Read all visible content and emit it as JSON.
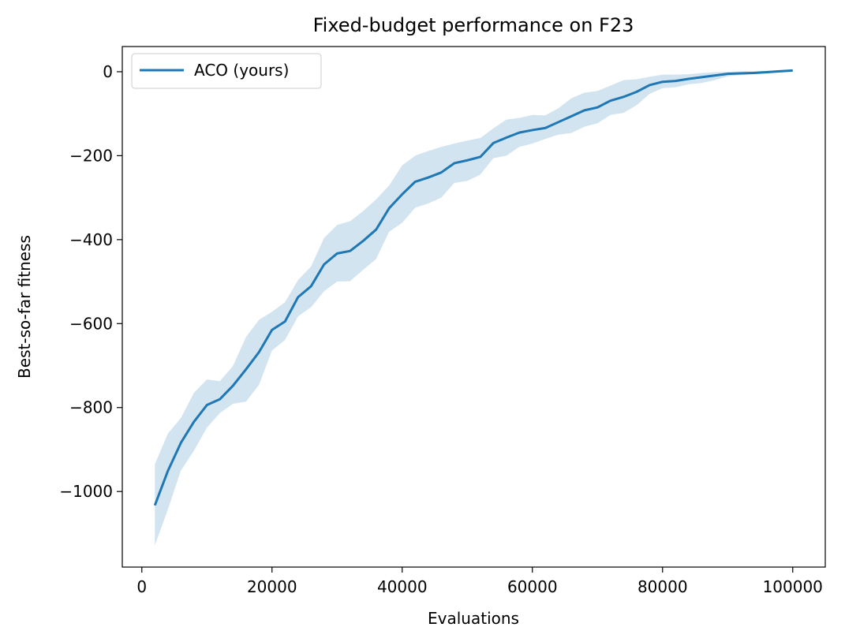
{
  "chart_data": {
    "type": "line",
    "title": "Fixed-budget performance on F23",
    "xlabel": "Evaluations",
    "ylabel": "Best-so-far fitness",
    "xlim": [
      -3000,
      105000
    ],
    "ylim": [
      -1180,
      60
    ],
    "x_ticks": [
      {
        "value": 0,
        "label": "0"
      },
      {
        "value": 20000,
        "label": "20000"
      },
      {
        "value": 40000,
        "label": "40000"
      },
      {
        "value": 60000,
        "label": "60000"
      },
      {
        "value": 80000,
        "label": "80000"
      },
      {
        "value": 100000,
        "label": "100000"
      }
    ],
    "y_ticks": [
      {
        "value": 0,
        "label": "0"
      },
      {
        "value": -200,
        "label": "−200"
      },
      {
        "value": -400,
        "label": "−400"
      },
      {
        "value": -600,
        "label": "−600"
      },
      {
        "value": -800,
        "label": "−800"
      },
      {
        "value": -1000,
        "label": "−1000"
      }
    ],
    "grid": false,
    "legend": {
      "position": "top-left"
    },
    "series": [
      {
        "name": "ACO (yours)",
        "color": "#1f77b4",
        "band_color": "#1f77b4",
        "band_opacity": 0.2,
        "x": [
          2000,
          4000,
          6000,
          8000,
          10000,
          12000,
          14000,
          16000,
          18000,
          20000,
          22000,
          24000,
          26000,
          28000,
          30000,
          32000,
          34000,
          36000,
          38000,
          40000,
          42000,
          44000,
          46000,
          48000,
          50000,
          52000,
          54000,
          56000,
          58000,
          60000,
          62000,
          64000,
          66000,
          68000,
          70000,
          72000,
          74000,
          76000,
          78000,
          80000,
          82000,
          84000,
          86000,
          88000,
          90000,
          92000,
          94000,
          96000,
          98000,
          100000
        ],
        "y": [
          -1033,
          -951,
          -884,
          -834,
          -794,
          -780,
          -748,
          -709,
          -668,
          -615,
          -595,
          -537,
          -511,
          -459,
          -433,
          -427,
          -403,
          -376,
          -325,
          -292,
          -262,
          -252,
          -240,
          -218,
          -211,
          -203,
          -170,
          -157,
          -145,
          -139,
          -134,
          -120,
          -106,
          -92,
          -85,
          -69,
          -60,
          -48,
          -32,
          -24,
          -22,
          -17,
          -13,
          -9,
          -5,
          -4,
          -3,
          -1,
          1,
          3
        ],
        "upper": [
          -935,
          -862,
          -825,
          -765,
          -733,
          -737,
          -701,
          -632,
          -591,
          -572,
          -549,
          -496,
          -464,
          -396,
          -365,
          -356,
          -332,
          -304,
          -271,
          -223,
          -200,
          -189,
          -179,
          -171,
          -164,
          -158,
          -135,
          -114,
          -110,
          -103,
          -104,
          -87,
          -63,
          -50,
          -46,
          -33,
          -20,
          -18,
          -12,
          -7,
          -7,
          -6,
          -3,
          -1,
          0,
          1,
          1,
          2,
          3,
          4
        ],
        "lower": [
          -1128,
          -1043,
          -950,
          -903,
          -848,
          -813,
          -791,
          -786,
          -746,
          -664,
          -639,
          -583,
          -561,
          -523,
          -500,
          -499,
          -472,
          -446,
          -381,
          -360,
          -324,
          -314,
          -300,
          -265,
          -260,
          -245,
          -206,
          -200,
          -179,
          -171,
          -160,
          -150,
          -146,
          -131,
          -123,
          -103,
          -98,
          -80,
          -53,
          -39,
          -37,
          -30,
          -27,
          -20,
          -11,
          -8,
          -6,
          -4,
          -1,
          2
        ]
      }
    ]
  }
}
